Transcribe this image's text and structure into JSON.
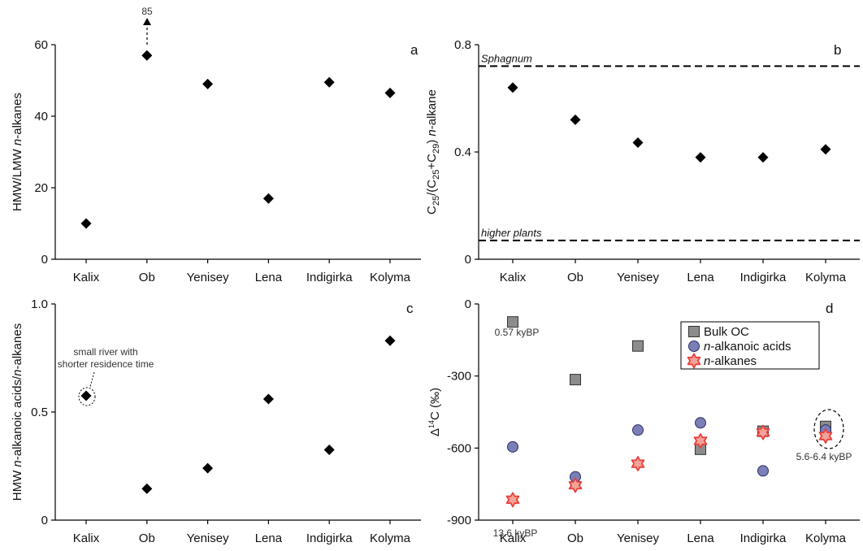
{
  "chart_data": [
    {
      "type": "scatter",
      "panel_label": "a",
      "categories": [
        "Kalix",
        "Ob",
        "Yenisey",
        "Lena",
        "Indigirka",
        "Kolyma"
      ],
      "ylabel": "HMW/LMW n-alkanes",
      "ylim": [
        0,
        60
      ],
      "yticks": [
        "0",
        "20",
        "40",
        "60"
      ],
      "series": [
        {
          "marker": "diamond",
          "color": "#000000",
          "values": [
            10,
            57,
            49,
            17,
            49.5,
            46.5
          ]
        }
      ],
      "annotations": [
        {
          "text": "85",
          "category": "Ob",
          "note": "arrow up"
        }
      ]
    },
    {
      "type": "scatter",
      "panel_label": "b",
      "categories": [
        "Kalix",
        "Ob",
        "Yenisey",
        "Lena",
        "Indigirka",
        "Kolyma"
      ],
      "ylabel": "C25/(C25+C29) n-alkane",
      "ylim": [
        0,
        0.8
      ],
      "yticks": [
        "0",
        "0.4",
        "0.8"
      ],
      "series": [
        {
          "marker": "diamond",
          "color": "#000000",
          "values": [
            0.64,
            0.52,
            0.435,
            0.38,
            0.38,
            0.41
          ]
        }
      ],
      "reference_lines": [
        {
          "label": "Sphagnum",
          "value": 0.72
        },
        {
          "label": "higher plants",
          "value": 0.07
        }
      ]
    },
    {
      "type": "scatter",
      "panel_label": "c",
      "categories": [
        "Kalix",
        "Ob",
        "Yenisey",
        "Lena",
        "Indigirka",
        "Kolyma"
      ],
      "ylabel": "HMW n-alkanoic acids/n-alkanes",
      "ylim": [
        0,
        1.0
      ],
      "yticks": [
        "0",
        "0.5",
        "1.0"
      ],
      "series": [
        {
          "marker": "diamond",
          "color": "#000000",
          "values": [
            0.575,
            0.145,
            0.24,
            0.56,
            0.325,
            0.83
          ]
        }
      ],
      "annotations": [
        {
          "text": "small river with shorter residence time",
          "category": "Kalix"
        }
      ]
    },
    {
      "type": "scatter",
      "panel_label": "d",
      "categories": [
        "Kalix",
        "Ob",
        "Yenisey",
        "Lena",
        "Indigirka",
        "Kolyma"
      ],
      "ylabel": "Δ14C (‰)",
      "ylim": [
        -900,
        0
      ],
      "yticks": [
        "0",
        "-300",
        "-600",
        "-900"
      ],
      "series": [
        {
          "name": "Bulk OC",
          "marker": "square",
          "color": "#8c8c8c",
          "values": [
            -75,
            -315,
            -175,
            -605,
            -530,
            -510
          ]
        },
        {
          "name": "n-alkanoic acids",
          "marker": "circle",
          "color": "#7b7fb8",
          "values": [
            -595,
            -720,
            -525,
            -495,
            -695,
            -525
          ]
        },
        {
          "name": "n-alkanes",
          "marker": "star",
          "color": "#e8413a",
          "values": [
            -815,
            -755,
            -665,
            -570,
            -535,
            -550
          ]
        }
      ],
      "annotations": [
        {
          "text": "0.57 kyBP",
          "category": "Kalix"
        },
        {
          "text": "13.6 kyBP",
          "category": "Kalix"
        },
        {
          "text": "5.6-6.4 kyBP",
          "category": "Kolyma"
        }
      ]
    }
  ]
}
